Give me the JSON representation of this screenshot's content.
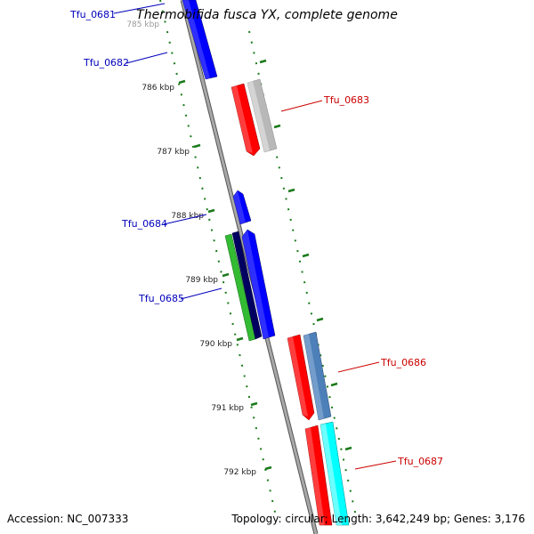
{
  "title": "Thermobifida fusca YX, complete genome",
  "footer": {
    "accession": "Accession: NC_007333",
    "summary": "Topology: circular; Length: 3,642,249 bp; Genes: 3,176"
  },
  "colors": {
    "backbone": "#8a8a8a",
    "tick": "#1a7a1a",
    "blue_label": "#0000bb",
    "red_label": "#cc0000"
  },
  "scale_labels": [
    "785 kbp",
    "786 kbp",
    "787 kbp",
    "788 kbp",
    "789 kbp",
    "790 kbp",
    "791 kbp",
    "792 kbp"
  ],
  "gene_labels": {
    "Tfu_0681": "Tfu_0681",
    "Tfu_0682": "Tfu_0682",
    "Tfu_0683": "Tfu_0683",
    "Tfu_0684": "Tfu_0684",
    "Tfu_0685": "Tfu_0685",
    "Tfu_0686": "Tfu_0686",
    "Tfu_0687": "Tfu_0687"
  }
}
